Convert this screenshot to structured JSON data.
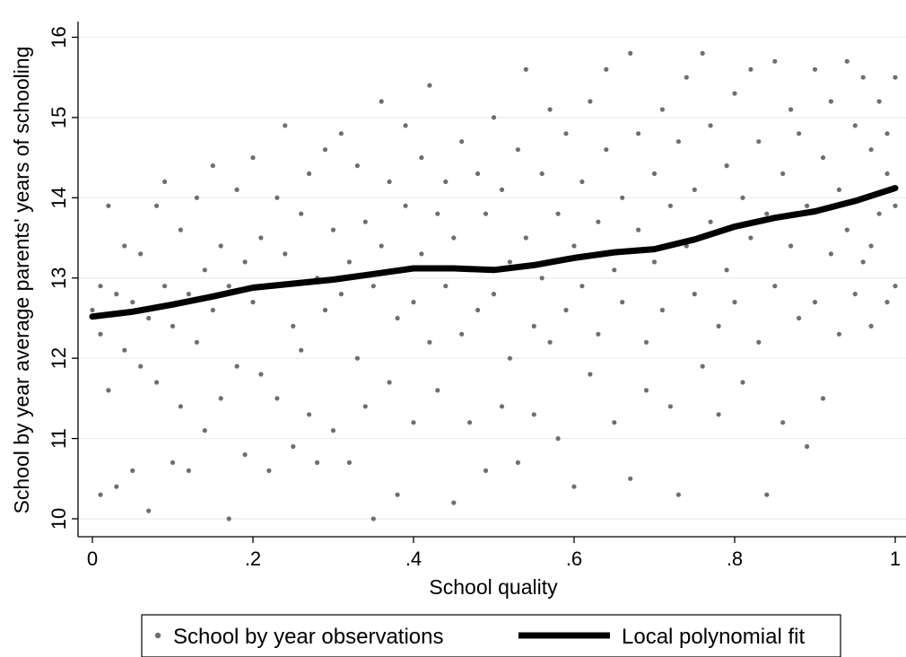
{
  "chart_data": {
    "type": "scatter",
    "xlabel": "School quality",
    "ylabel": "School by year average parents' years of schooling",
    "xlim": [
      0,
      1
    ],
    "ylim": [
      9.9,
      16.2
    ],
    "xticks": [
      0,
      0.2,
      0.4,
      0.6,
      0.8,
      1
    ],
    "xtick_labels": [
      "0",
      ".2",
      ".4",
      ".6",
      ".8",
      "1"
    ],
    "yticks": [
      10,
      11,
      12,
      13,
      14,
      15,
      16
    ],
    "ytick_labels": [
      "10",
      "11",
      "12",
      "13",
      "14",
      "15",
      "16"
    ],
    "grid": "horizontal",
    "legend_position": "bottom",
    "colors": {
      "points": "#6e6e6e",
      "fit": "#000000",
      "grid": "#e6eef2",
      "background": "#ffffff"
    },
    "series": [
      {
        "name": "School by year observations",
        "kind": "scatter",
        "note_values": "approximate sample of the dense point cloud",
        "points": [
          [
            0.0,
            12.6
          ],
          [
            0.01,
            12.9
          ],
          [
            0.01,
            12.3
          ],
          [
            0.01,
            10.3
          ],
          [
            0.02,
            13.9
          ],
          [
            0.02,
            11.6
          ],
          [
            0.03,
            12.8
          ],
          [
            0.03,
            10.4
          ],
          [
            0.04,
            13.4
          ],
          [
            0.04,
            12.1
          ],
          [
            0.05,
            12.7
          ],
          [
            0.05,
            10.6
          ],
          [
            0.06,
            13.3
          ],
          [
            0.06,
            11.9
          ],
          [
            0.07,
            10.1
          ],
          [
            0.07,
            12.5
          ],
          [
            0.08,
            13.9
          ],
          [
            0.08,
            11.7
          ],
          [
            0.09,
            12.9
          ],
          [
            0.09,
            14.2
          ],
          [
            0.1,
            12.4
          ],
          [
            0.1,
            10.7
          ],
          [
            0.11,
            13.6
          ],
          [
            0.11,
            11.4
          ],
          [
            0.12,
            12.8
          ],
          [
            0.12,
            10.6
          ],
          [
            0.13,
            14.0
          ],
          [
            0.13,
            12.2
          ],
          [
            0.14,
            11.1
          ],
          [
            0.14,
            13.1
          ],
          [
            0.15,
            12.6
          ],
          [
            0.15,
            14.4
          ],
          [
            0.16,
            11.5
          ],
          [
            0.16,
            13.4
          ],
          [
            0.17,
            10.0
          ],
          [
            0.17,
            12.9
          ],
          [
            0.18,
            11.9
          ],
          [
            0.18,
            14.1
          ],
          [
            0.19,
            13.2
          ],
          [
            0.19,
            10.8
          ],
          [
            0.2,
            12.7
          ],
          [
            0.2,
            14.5
          ],
          [
            0.21,
            11.8
          ],
          [
            0.21,
            13.5
          ],
          [
            0.22,
            10.6
          ],
          [
            0.22,
            12.9
          ],
          [
            0.23,
            14.0
          ],
          [
            0.23,
            11.5
          ],
          [
            0.24,
            13.3
          ],
          [
            0.24,
            14.9
          ],
          [
            0.25,
            12.4
          ],
          [
            0.25,
            10.9
          ],
          [
            0.26,
            13.8
          ],
          [
            0.26,
            12.1
          ],
          [
            0.27,
            14.3
          ],
          [
            0.27,
            11.3
          ],
          [
            0.28,
            13.0
          ],
          [
            0.28,
            10.7
          ],
          [
            0.29,
            14.6
          ],
          [
            0.29,
            12.6
          ],
          [
            0.3,
            13.6
          ],
          [
            0.3,
            11.1
          ],
          [
            0.31,
            12.8
          ],
          [
            0.31,
            14.8
          ],
          [
            0.32,
            10.7
          ],
          [
            0.32,
            13.2
          ],
          [
            0.33,
            12.0
          ],
          [
            0.33,
            14.4
          ],
          [
            0.34,
            11.4
          ],
          [
            0.34,
            13.7
          ],
          [
            0.35,
            10.0
          ],
          [
            0.35,
            12.9
          ],
          [
            0.36,
            15.2
          ],
          [
            0.36,
            13.4
          ],
          [
            0.37,
            11.7
          ],
          [
            0.37,
            14.2
          ],
          [
            0.38,
            12.5
          ],
          [
            0.38,
            10.3
          ],
          [
            0.39,
            13.9
          ],
          [
            0.39,
            14.9
          ],
          [
            0.4,
            12.7
          ],
          [
            0.4,
            11.2
          ],
          [
            0.41,
            13.3
          ],
          [
            0.41,
            14.5
          ],
          [
            0.42,
            15.4
          ],
          [
            0.42,
            12.2
          ],
          [
            0.43,
            13.8
          ],
          [
            0.43,
            11.6
          ],
          [
            0.44,
            14.2
          ],
          [
            0.44,
            12.9
          ],
          [
            0.45,
            10.2
          ],
          [
            0.45,
            13.5
          ],
          [
            0.46,
            12.3
          ],
          [
            0.46,
            14.7
          ],
          [
            0.47,
            11.2
          ],
          [
            0.47,
            13.1
          ],
          [
            0.48,
            14.3
          ],
          [
            0.48,
            12.6
          ],
          [
            0.49,
            10.6
          ],
          [
            0.49,
            13.8
          ],
          [
            0.5,
            15.0
          ],
          [
            0.5,
            12.8
          ],
          [
            0.51,
            11.4
          ],
          [
            0.51,
            14.1
          ],
          [
            0.52,
            13.2
          ],
          [
            0.52,
            12.0
          ],
          [
            0.53,
            14.6
          ],
          [
            0.53,
            10.7
          ],
          [
            0.54,
            15.6
          ],
          [
            0.54,
            13.5
          ],
          [
            0.55,
            12.4
          ],
          [
            0.55,
            11.3
          ],
          [
            0.56,
            14.3
          ],
          [
            0.56,
            13.0
          ],
          [
            0.57,
            15.1
          ],
          [
            0.57,
            12.2
          ],
          [
            0.58,
            13.8
          ],
          [
            0.58,
            11.0
          ],
          [
            0.59,
            14.8
          ],
          [
            0.59,
            12.6
          ],
          [
            0.6,
            13.4
          ],
          [
            0.6,
            10.4
          ],
          [
            0.61,
            14.2
          ],
          [
            0.61,
            12.9
          ],
          [
            0.62,
            15.2
          ],
          [
            0.62,
            11.8
          ],
          [
            0.63,
            13.7
          ],
          [
            0.63,
            12.3
          ],
          [
            0.64,
            14.6
          ],
          [
            0.64,
            15.6
          ],
          [
            0.65,
            13.1
          ],
          [
            0.65,
            11.2
          ],
          [
            0.66,
            14.0
          ],
          [
            0.66,
            12.7
          ],
          [
            0.67,
            15.8
          ],
          [
            0.67,
            10.5
          ],
          [
            0.68,
            13.6
          ],
          [
            0.68,
            14.8
          ],
          [
            0.69,
            12.2
          ],
          [
            0.69,
            11.6
          ],
          [
            0.7,
            14.3
          ],
          [
            0.7,
            13.2
          ],
          [
            0.71,
            15.1
          ],
          [
            0.71,
            12.6
          ],
          [
            0.72,
            13.9
          ],
          [
            0.72,
            11.4
          ],
          [
            0.73,
            14.7
          ],
          [
            0.73,
            10.3
          ],
          [
            0.74,
            13.4
          ],
          [
            0.74,
            15.5
          ],
          [
            0.75,
            12.8
          ],
          [
            0.75,
            14.1
          ],
          [
            0.76,
            15.8
          ],
          [
            0.76,
            11.9
          ],
          [
            0.77,
            13.7
          ],
          [
            0.77,
            14.9
          ],
          [
            0.78,
            12.4
          ],
          [
            0.78,
            11.3
          ],
          [
            0.79,
            14.4
          ],
          [
            0.79,
            13.1
          ],
          [
            0.8,
            15.3
          ],
          [
            0.8,
            12.7
          ],
          [
            0.81,
            14.0
          ],
          [
            0.81,
            11.7
          ],
          [
            0.82,
            15.6
          ],
          [
            0.82,
            13.5
          ],
          [
            0.83,
            12.2
          ],
          [
            0.83,
            14.7
          ],
          [
            0.84,
            10.3
          ],
          [
            0.84,
            13.8
          ],
          [
            0.85,
            15.7
          ],
          [
            0.85,
            12.9
          ],
          [
            0.86,
            14.3
          ],
          [
            0.86,
            11.2
          ],
          [
            0.87,
            13.4
          ],
          [
            0.87,
            15.1
          ],
          [
            0.88,
            12.5
          ],
          [
            0.88,
            14.8
          ],
          [
            0.89,
            10.9
          ],
          [
            0.89,
            13.9
          ],
          [
            0.9,
            15.6
          ],
          [
            0.9,
            12.7
          ],
          [
            0.91,
            14.5
          ],
          [
            0.91,
            11.5
          ],
          [
            0.92,
            13.3
          ],
          [
            0.92,
            15.2
          ],
          [
            0.93,
            12.3
          ],
          [
            0.93,
            14.1
          ],
          [
            0.94,
            15.7
          ],
          [
            0.94,
            13.6
          ],
          [
            0.95,
            12.8
          ],
          [
            0.95,
            14.9
          ],
          [
            0.96,
            15.5
          ],
          [
            0.96,
            13.2
          ],
          [
            0.97,
            14.6
          ],
          [
            0.97,
            12.4
          ],
          [
            0.98,
            15.2
          ],
          [
            0.98,
            13.8
          ],
          [
            0.99,
            14.3
          ],
          [
            0.99,
            12.7
          ],
          [
            1.0,
            15.5
          ],
          [
            1.0,
            13.9
          ],
          [
            1.0,
            12.9
          ],
          [
            0.99,
            14.8
          ],
          [
            0.97,
            13.4
          ]
        ]
      },
      {
        "name": "Local polynomial fit",
        "kind": "line",
        "x": [
          0.0,
          0.05,
          0.1,
          0.15,
          0.2,
          0.25,
          0.3,
          0.35,
          0.4,
          0.45,
          0.5,
          0.55,
          0.6,
          0.65,
          0.7,
          0.75,
          0.8,
          0.85,
          0.9,
          0.95,
          1.0
        ],
        "y": [
          12.52,
          12.58,
          12.67,
          12.77,
          12.88,
          12.93,
          12.98,
          13.05,
          13.12,
          13.12,
          13.1,
          13.16,
          13.25,
          13.32,
          13.36,
          13.48,
          13.64,
          13.75,
          13.83,
          13.96,
          14.12
        ]
      }
    ]
  }
}
